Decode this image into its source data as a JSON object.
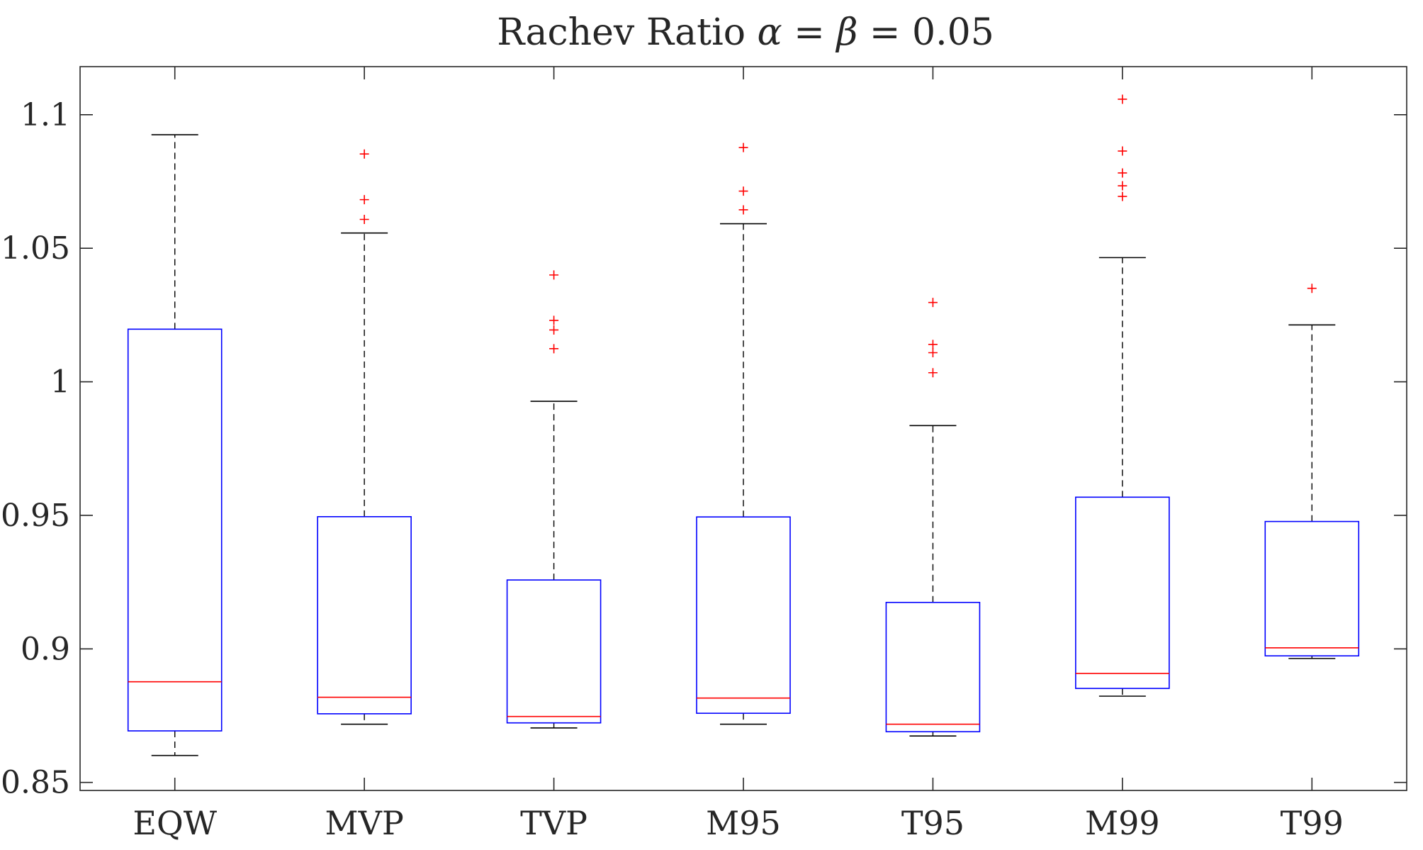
{
  "chart_data": {
    "type": "boxplot",
    "title": "Rachev Ratio α = β = 0.05",
    "title_parts": {
      "prefix": "Rachev Ratio ",
      "alpha": "α",
      "beta": "β",
      "eq1": " = ",
      "eq2": " = ",
      "value": "0.05"
    },
    "xlabel": "",
    "ylabel": "",
    "ylim": [
      0.847,
      1.118
    ],
    "yticks": [
      0.85,
      0.9,
      0.95,
      1.0,
      1.05,
      1.1
    ],
    "ytick_labels": [
      "0.85",
      "0.9",
      "0.95",
      "1",
      "1.05",
      "1.1"
    ],
    "categories": [
      "EQW",
      "MVP",
      "TVP",
      "M95",
      "T95",
      "M99",
      "T99"
    ],
    "boxes": [
      {
        "name": "EQW",
        "whisker_low": 0.8601,
        "q1": 0.8693,
        "median": 0.8877,
        "q3": 1.0197,
        "whisker_high": 1.0925,
        "outliers": []
      },
      {
        "name": "MVP",
        "whisker_low": 0.8718,
        "q1": 0.8757,
        "median": 0.8819,
        "q3": 0.9495,
        "whisker_high": 1.0557,
        "outliers": [
          1.0853,
          1.0682,
          1.0608
        ]
      },
      {
        "name": "TVP",
        "whisker_low": 0.8704,
        "q1": 0.8723,
        "median": 0.8747,
        "q3": 0.9258,
        "whisker_high": 0.9927,
        "outliers": [
          1.04,
          1.023,
          1.0194,
          1.0124
        ]
      },
      {
        "name": "M95",
        "whisker_low": 0.8718,
        "q1": 0.8759,
        "median": 0.8816,
        "q3": 0.9494,
        "whisker_high": 1.0592,
        "outliers": [
          1.0877,
          1.0714,
          1.0644
        ]
      },
      {
        "name": "T95",
        "whisker_low": 0.8674,
        "q1": 0.869,
        "median": 0.8718,
        "q3": 0.9174,
        "whisker_high": 0.9836,
        "outliers": [
          1.0297,
          1.014,
          1.0109,
          1.0034
        ]
      },
      {
        "name": "M99",
        "whisker_low": 0.8823,
        "q1": 0.8852,
        "median": 0.8908,
        "q3": 0.9568,
        "whisker_high": 1.0465,
        "outliers": [
          1.1058,
          1.0864,
          1.0782,
          1.0734,
          1.0694
        ]
      },
      {
        "name": "T99",
        "whisker_low": 0.8964,
        "q1": 0.8974,
        "median": 0.9004,
        "q3": 0.9477,
        "whisker_high": 1.0213,
        "outliers": [
          1.035
        ]
      }
    ],
    "colors": {
      "box": "#0000ff",
      "median": "#ff0000",
      "whisker": "#000000",
      "outlier": "#ff0000",
      "axis": "#262626"
    }
  }
}
